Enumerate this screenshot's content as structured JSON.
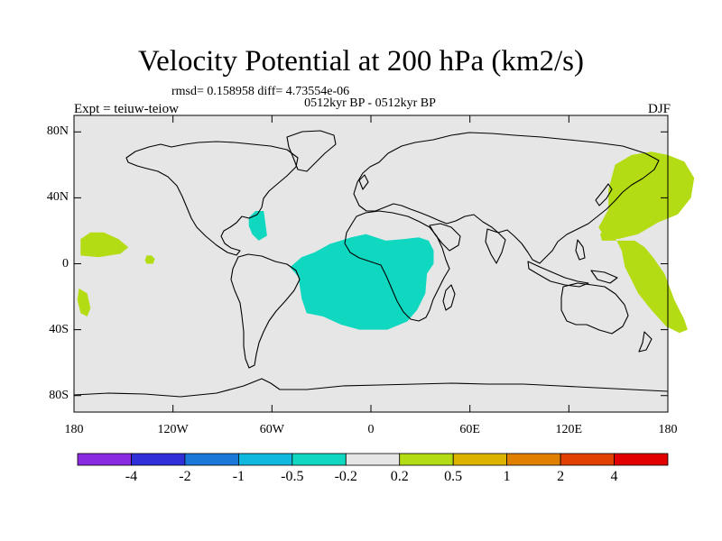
{
  "title": "Velocity Potential at 200 hPa (km2/s)",
  "stats": {
    "rmsd_line": "rmsd= 0.158958 diff= 4.73554e-06",
    "period": "0512kyr BP - 0512kyr BP",
    "expt": "Expt = teiuw-teiow",
    "season": "DJF"
  },
  "map": {
    "background_color": "#e6e6e6",
    "lat_ticks": [
      {
        "value": 80,
        "label": "80N"
      },
      {
        "value": 40,
        "label": "40N"
      },
      {
        "value": 0,
        "label": "0"
      },
      {
        "value": -40,
        "label": "40S"
      },
      {
        "value": -80,
        "label": "80S"
      }
    ],
    "lon_ticks": [
      {
        "value": -180,
        "label": "180"
      },
      {
        "value": -120,
        "label": "120W"
      },
      {
        "value": -60,
        "label": "60W"
      },
      {
        "value": 0,
        "label": "0"
      },
      {
        "value": 60,
        "label": "60E"
      },
      {
        "value": 120,
        "label": "120E"
      },
      {
        "value": 180,
        "label": "180"
      }
    ]
  },
  "colorbar": {
    "colors": [
      "#8a2be2",
      "#3030d8",
      "#1a78d8",
      "#10b8e0",
      "#10d8c0",
      "#e6e6e6",
      "#b4dc14",
      "#dcb400",
      "#e08000",
      "#e04000",
      "#e00000"
    ],
    "labels": [
      "-4",
      "-2",
      "-1",
      "-0.5",
      "-0.2",
      "0.2",
      "0.5",
      "1",
      "2",
      "4"
    ]
  },
  "chart_data": {
    "type": "heatmap",
    "title": "Velocity Potential at 200 hPa (km2/s)",
    "levels": [
      -4,
      -2,
      -1,
      -0.5,
      -0.2,
      0.2,
      0.5,
      1,
      2,
      4
    ],
    "lon_range": [
      -180,
      180
    ],
    "lat_range": [
      -90,
      90
    ],
    "regions": [
      {
        "sign": "negative",
        "range": "-0.5 to -0.2",
        "area": "tropical Atlantic and Africa",
        "polygon": [
          [
            -49,
            -2
          ],
          [
            -44,
            -8
          ],
          [
            -42,
            -21
          ],
          [
            -39,
            -30
          ],
          [
            -29,
            -32
          ],
          [
            -18,
            -37
          ],
          [
            -7,
            -40
          ],
          [
            10,
            -40
          ],
          [
            22,
            -35
          ],
          [
            28,
            -28
          ],
          [
            33,
            -18
          ],
          [
            34,
            -6
          ],
          [
            38,
            0
          ],
          [
            38,
            8
          ],
          [
            35,
            14
          ],
          [
            29,
            16
          ],
          [
            20,
            15
          ],
          [
            9,
            14
          ],
          [
            -3,
            18
          ],
          [
            -12,
            16
          ],
          [
            -25,
            12
          ],
          [
            -34,
            7
          ],
          [
            -42,
            4
          ]
        ]
      },
      {
        "sign": "negative",
        "range": "-0.5 to -0.2",
        "area": "Caribbean",
        "polygon": [
          [
            -74,
            28
          ],
          [
            -70,
            32
          ],
          [
            -65,
            32
          ],
          [
            -64,
            25
          ],
          [
            -63,
            17
          ],
          [
            -68,
            14
          ],
          [
            -72,
            18
          ],
          [
            -74,
            23
          ]
        ]
      },
      {
        "sign": "positive",
        "range": "0.2 to 0.5",
        "area": "East Asia and western Pacific",
        "polygon": [
          [
            -9,
            20
          ],
          [
            -11,
            18
          ],
          [
            -10,
            14
          ],
          [
            0,
            14
          ],
          [
            10,
            14
          ],
          [
            16,
            10
          ],
          [
            21,
            4
          ],
          [
            28,
            -6
          ],
          [
            34,
            -22
          ],
          [
            40,
            -34
          ],
          [
            42,
            -40
          ],
          [
            37,
            -42
          ],
          [
            29,
            -38
          ],
          [
            20,
            -28
          ],
          [
            12,
            -18
          ],
          [
            8,
            -10
          ],
          [
            4,
            -2
          ],
          [
            2,
            8
          ],
          [
            -2,
            16
          ],
          [
            -7,
            20
          ]
        ],
        "lon_offset": 150
      },
      {
        "sign": "positive",
        "range": "0.2 to 0.5",
        "area": "northern Asia",
        "polygon": [
          [
            -12,
            22
          ],
          [
            -6,
            33
          ],
          [
            -6,
            45
          ],
          [
            -2,
            60
          ],
          [
            8,
            66
          ],
          [
            20,
            68
          ],
          [
            30,
            66
          ],
          [
            40,
            62
          ],
          [
            46,
            52
          ],
          [
            44,
            40
          ],
          [
            36,
            30
          ],
          [
            24,
            25
          ],
          [
            12,
            18
          ],
          [
            0,
            15
          ],
          [
            -8,
            16
          ]
        ],
        "lon_offset": 150
      },
      {
        "sign": "positive",
        "range": "0.2 to 0.5",
        "area": "central Pacific",
        "polygon": [
          [
            -176,
            5
          ],
          [
            -176,
            15
          ],
          [
            -170,
            19
          ],
          [
            -162,
            19
          ],
          [
            -153,
            15
          ],
          [
            -147,
            10
          ],
          [
            -152,
            6
          ],
          [
            -165,
            4
          ]
        ]
      },
      {
        "sign": "positive",
        "range": "0.2 to 0.5",
        "area": "central Pacific small",
        "polygon": [
          [
            -137,
            2
          ],
          [
            -136,
            5
          ],
          [
            -133,
            5
          ],
          [
            -131,
            3
          ],
          [
            -132,
            0
          ],
          [
            -136,
            0
          ]
        ]
      },
      {
        "sign": "positive",
        "range": "0.2 to 0.5",
        "area": "South Pacific",
        "polygon": [
          [
            -177,
            -15
          ],
          [
            -178,
            -22
          ],
          [
            -176,
            -30
          ],
          [
            -172,
            -32
          ],
          [
            -170,
            -27
          ],
          [
            -172,
            -18
          ]
        ]
      }
    ]
  }
}
